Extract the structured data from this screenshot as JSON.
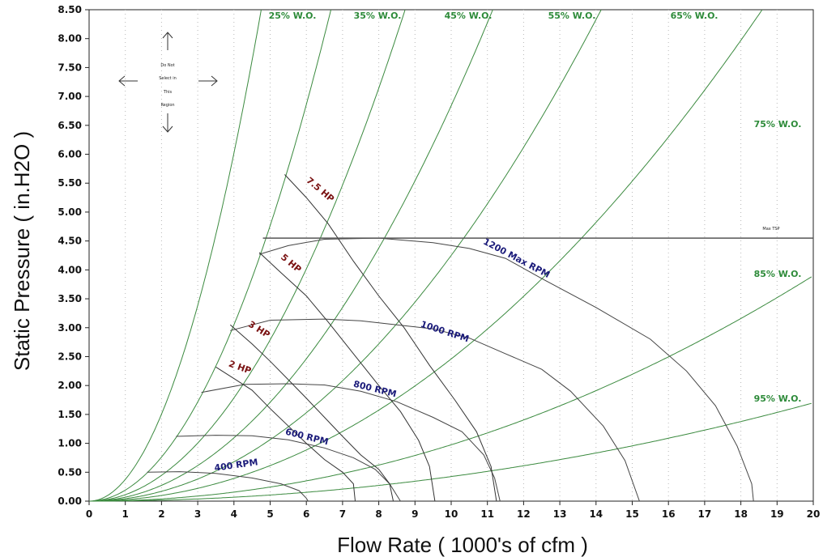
{
  "chart_data": {
    "type": "line",
    "xlabel": "Flow Rate ( 1000's of cfm )",
    "ylabel": "Static Pressure ( in.H2O )",
    "xlim": [
      0,
      20
    ],
    "ylim": [
      0,
      8.5
    ],
    "x_ticks": [
      "0",
      "1",
      "2",
      "3",
      "4",
      "5",
      "6",
      "7",
      "8",
      "9",
      "10",
      "11",
      "12",
      "13",
      "14",
      "15",
      "16",
      "17",
      "18",
      "19",
      "20"
    ],
    "y_ticks": [
      "0.00",
      "0.50",
      "1.00",
      "1.50",
      "2.00",
      "2.50",
      "3.00",
      "3.50",
      "4.00",
      "4.50",
      "5.00",
      "5.50",
      "6.00",
      "6.50",
      "7.00",
      "7.50",
      "8.00",
      "8.50"
    ],
    "grid": "vertical dashed",
    "colors": {
      "wo": "#3b8a3f",
      "rpm": "#444444",
      "hp": "#333333",
      "wo_text": "#2e8b3a",
      "rpm_text": "#1b1b7a",
      "hp_text": "#7a1212"
    },
    "wide_open_curves": [
      {
        "label": "25% W.O.",
        "k": 0.3762
      },
      {
        "label": "35% W.O.",
        "k": 0.1906
      },
      {
        "label": "45% W.O.",
        "k": 0.1116
      },
      {
        "label": "55% W.O.",
        "k": 0.0684
      },
      {
        "label": "65% W.O.",
        "k": 0.0425
      },
      {
        "label": "75% W.O.",
        "k": 0.0246
      },
      {
        "label": "85% W.O.",
        "k": 0.00975
      },
      {
        "label": "95% W.O.",
        "k": 0.00425
      }
    ],
    "rpm_curves": [
      {
        "label": "400 RPM",
        "points": [
          [
            1.6,
            0.5
          ],
          [
            2.5,
            0.51
          ],
          [
            3.5,
            0.48
          ],
          [
            4.5,
            0.4
          ],
          [
            5.3,
            0.3
          ],
          [
            5.8,
            0.18
          ],
          [
            6.0,
            0.05
          ],
          [
            6.05,
            0.0
          ]
        ]
      },
      {
        "label": "600 RPM",
        "points": [
          [
            2.4,
            1.12
          ],
          [
            3.5,
            1.14
          ],
          [
            4.5,
            1.13
          ],
          [
            5.5,
            1.06
          ],
          [
            6.5,
            0.92
          ],
          [
            7.3,
            0.75
          ],
          [
            7.9,
            0.55
          ],
          [
            8.3,
            0.3
          ],
          [
            8.5,
            0.1
          ],
          [
            8.6,
            0.0
          ]
        ]
      },
      {
        "label": "800 RPM",
        "points": [
          [
            3.1,
            1.88
          ],
          [
            4.3,
            2.02
          ],
          [
            5.5,
            2.03
          ],
          [
            6.5,
            2.01
          ],
          [
            7.5,
            1.9
          ],
          [
            8.5,
            1.72
          ],
          [
            9.5,
            1.45
          ],
          [
            10.3,
            1.2
          ],
          [
            10.9,
            0.8
          ],
          [
            11.2,
            0.4
          ],
          [
            11.35,
            0.0
          ]
        ]
      },
      {
        "label": "1000 RPM",
        "points": [
          [
            3.9,
            2.95
          ],
          [
            5.0,
            3.13
          ],
          [
            6.5,
            3.15
          ],
          [
            7.5,
            3.12
          ],
          [
            8.5,
            3.05
          ],
          [
            9.5,
            2.98
          ],
          [
            10.5,
            2.82
          ],
          [
            11.5,
            2.55
          ],
          [
            12.5,
            2.28
          ],
          [
            13.3,
            1.9
          ],
          [
            14.2,
            1.3
          ],
          [
            14.8,
            0.7
          ],
          [
            15.2,
            0.0
          ]
        ]
      },
      {
        "label": "1200 Max RPM",
        "points": [
          [
            4.7,
            4.27
          ],
          [
            5.5,
            4.42
          ],
          [
            6.5,
            4.53
          ],
          [
            8.0,
            4.55
          ],
          [
            9.5,
            4.47
          ],
          [
            10.5,
            4.37
          ],
          [
            11.5,
            4.2
          ],
          [
            12.5,
            3.85
          ],
          [
            14.0,
            3.35
          ],
          [
            15.5,
            2.8
          ],
          [
            16.5,
            2.25
          ],
          [
            17.3,
            1.65
          ],
          [
            17.9,
            0.95
          ],
          [
            18.3,
            0.3
          ],
          [
            18.35,
            0.0
          ]
        ]
      }
    ],
    "hp_curves": [
      {
        "label": "2 HP",
        "points": [
          [
            3.5,
            2.32
          ],
          [
            4.0,
            2.12
          ],
          [
            4.5,
            1.92
          ],
          [
            5.0,
            1.6
          ],
          [
            5.5,
            1.3
          ],
          [
            6.0,
            1.0
          ],
          [
            6.5,
            0.72
          ],
          [
            7.0,
            0.5
          ],
          [
            7.3,
            0.3
          ],
          [
            7.35,
            0.0
          ]
        ]
      },
      {
        "label": "3 HP",
        "points": [
          [
            3.9,
            3.05
          ],
          [
            4.5,
            2.72
          ],
          [
            5.0,
            2.42
          ],
          [
            5.5,
            2.1
          ],
          [
            6.0,
            1.78
          ],
          [
            6.5,
            1.45
          ],
          [
            7.0,
            1.12
          ],
          [
            7.5,
            0.8
          ],
          [
            8.0,
            0.55
          ],
          [
            8.3,
            0.3
          ],
          [
            8.4,
            0.0
          ]
        ]
      },
      {
        "label": "5 HP",
        "points": [
          [
            4.7,
            4.3
          ],
          [
            5.3,
            3.95
          ],
          [
            6.0,
            3.55
          ],
          [
            6.6,
            3.1
          ],
          [
            7.3,
            2.55
          ],
          [
            8.0,
            2.0
          ],
          [
            8.6,
            1.55
          ],
          [
            9.1,
            1.05
          ],
          [
            9.4,
            0.6
          ],
          [
            9.55,
            0.0
          ]
        ]
      },
      {
        "label": "7.5 HP",
        "points": [
          [
            5.4,
            5.65
          ],
          [
            6.0,
            5.25
          ],
          [
            6.6,
            4.8
          ],
          [
            7.3,
            4.15
          ],
          [
            8.0,
            3.55
          ],
          [
            8.7,
            3.0
          ],
          [
            9.4,
            2.35
          ],
          [
            10.1,
            1.75
          ],
          [
            10.7,
            1.2
          ],
          [
            11.1,
            0.6
          ],
          [
            11.25,
            0.0
          ]
        ]
      }
    ],
    "max_tsp": {
      "label": "Max TSP",
      "y": 4.55,
      "x_start": 4.8,
      "x_end": 20
    },
    "note": {
      "lines": [
        "Do Not",
        "Select in",
        "This",
        "Region"
      ]
    }
  }
}
